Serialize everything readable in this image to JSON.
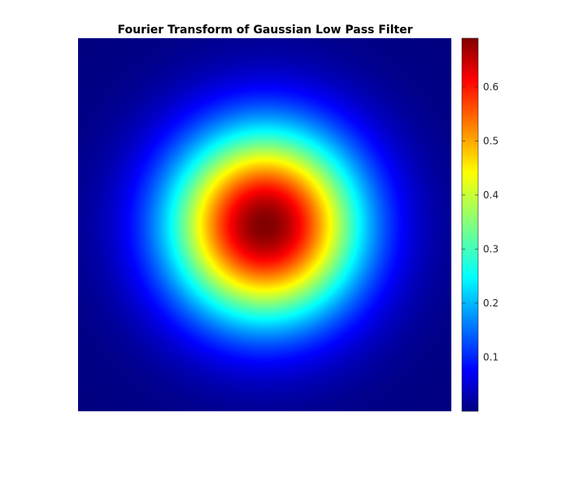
{
  "chart_data": {
    "type": "heatmap",
    "title": "Fourier Transform of Gaussian Low Pass Filter",
    "xlabel": "",
    "ylabel": "",
    "surface": {
      "shape": "2D Gaussian",
      "peak_value": 0.69,
      "edge_value": 0.0,
      "center_row_fraction": 0.5,
      "center_col_fraction": 0.5,
      "sigma_fraction": 0.18
    },
    "colormap": "jet",
    "colorbar": {
      "range": [
        0.0,
        0.69
      ],
      "ticks": [
        0.1,
        0.2,
        0.3,
        0.4,
        0.5,
        0.6
      ],
      "tick_labels": [
        "0.1",
        "0.2",
        "0.3",
        "0.4",
        "0.5",
        "0.6"
      ],
      "placement": "right"
    },
    "axes_visible": false,
    "grid": false
  }
}
